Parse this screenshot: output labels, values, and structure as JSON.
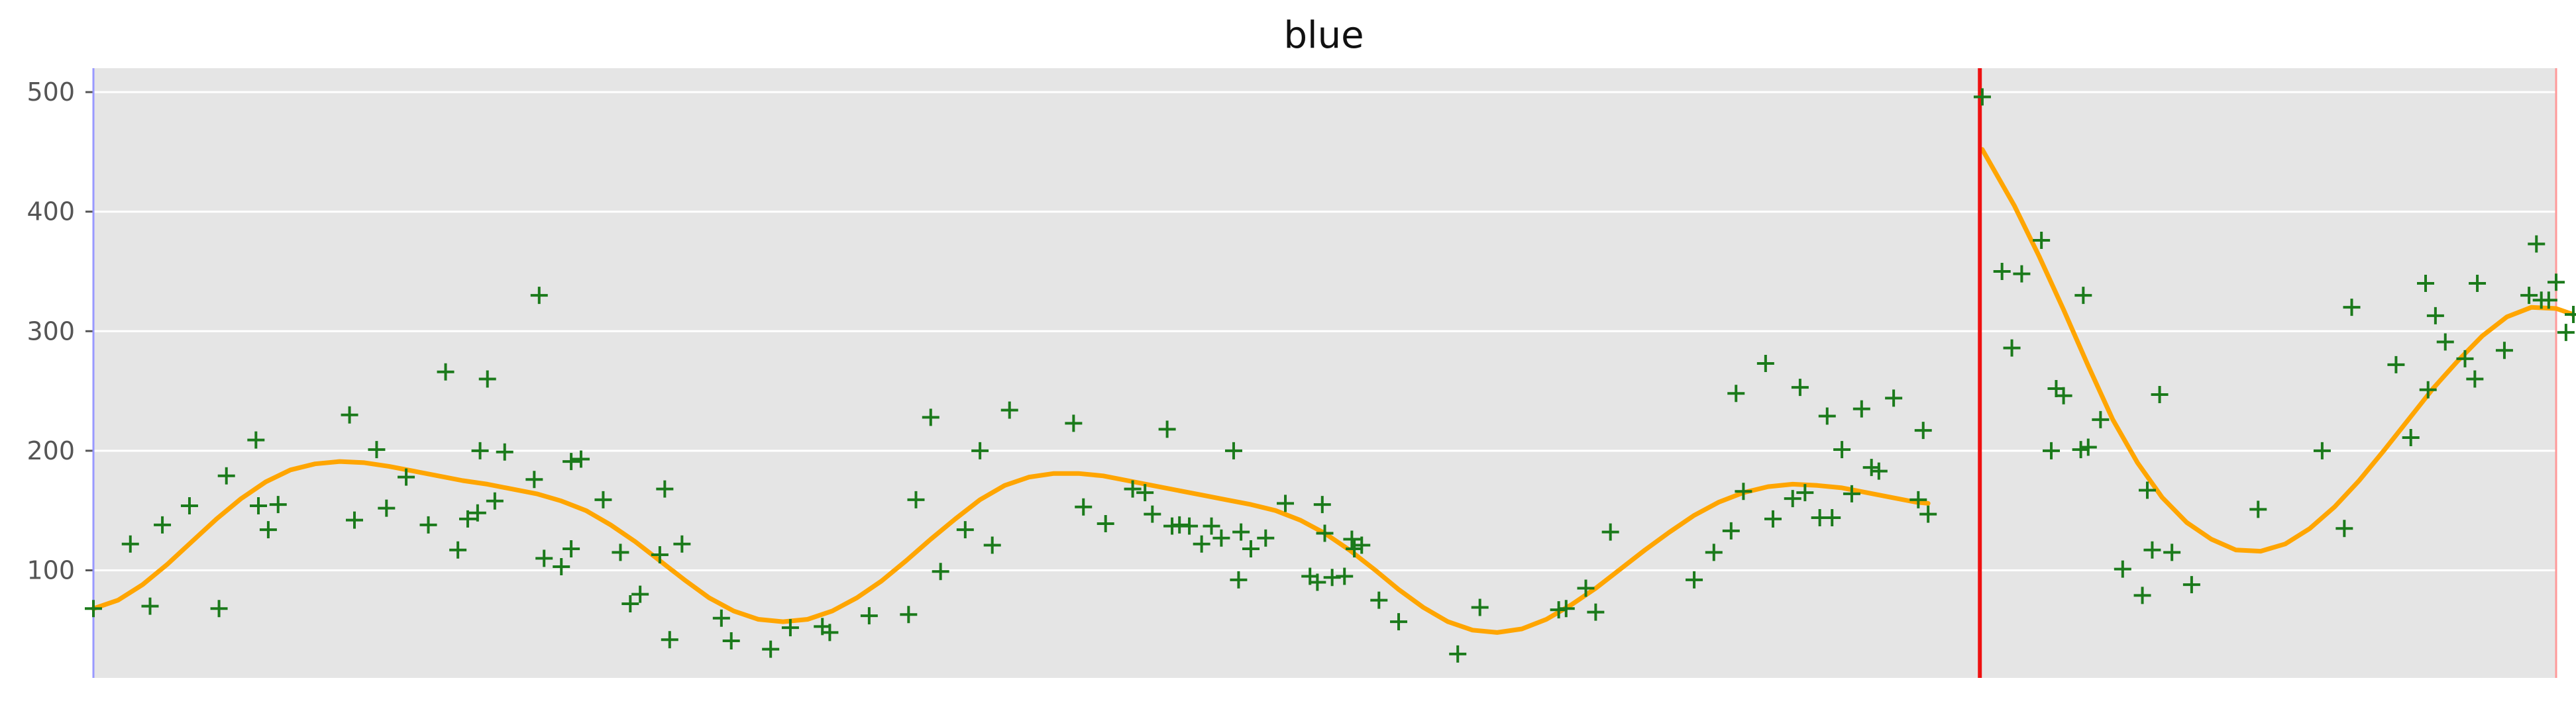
{
  "chart_data": {
    "type": "scatter",
    "title": "blue",
    "xlabel": "",
    "ylabel": "",
    "xlim": [
      0,
      1000
    ],
    "ylim": [
      10,
      520
    ],
    "yticks": [
      100,
      200,
      300,
      400,
      500
    ],
    "grid": true,
    "background": "#e5e5e5",
    "grid_color": "#ffffff",
    "point_marker": "+",
    "colors": {
      "points": "#1b7a1b",
      "fit_line": "#ffa500",
      "split_line": "#ee1111",
      "left_edge": "#9999ff",
      "right_edge": "#ff9999"
    },
    "split_x": 766,
    "points": [
      [
        0,
        68
      ],
      [
        15,
        122
      ],
      [
        23,
        70
      ],
      [
        28,
        138
      ],
      [
        39,
        154
      ],
      [
        51,
        68
      ],
      [
        54,
        179
      ],
      [
        66,
        209
      ],
      [
        67,
        154
      ],
      [
        71,
        134
      ],
      [
        75,
        155
      ],
      [
        104,
        230
      ],
      [
        106,
        142
      ],
      [
        115,
        201
      ],
      [
        119,
        152
      ],
      [
        127,
        178
      ],
      [
        136,
        138
      ],
      [
        143,
        266
      ],
      [
        148,
        117
      ],
      [
        152,
        143
      ],
      [
        156,
        148
      ],
      [
        157,
        200
      ],
      [
        160,
        260
      ],
      [
        163,
        158
      ],
      [
        167,
        199
      ],
      [
        179,
        176
      ],
      [
        181,
        330
      ],
      [
        183,
        110
      ],
      [
        190,
        103
      ],
      [
        194,
        191
      ],
      [
        194,
        118
      ],
      [
        198,
        193
      ],
      [
        207,
        159
      ],
      [
        214,
        115
      ],
      [
        218,
        72
      ],
      [
        222,
        80
      ],
      [
        230,
        113
      ],
      [
        232,
        168
      ],
      [
        234,
        42
      ],
      [
        239,
        122
      ],
      [
        255,
        60
      ],
      [
        259,
        41
      ],
      [
        275,
        34
      ],
      [
        283,
        52
      ],
      [
        296,
        53
      ],
      [
        299,
        48
      ],
      [
        315,
        62
      ],
      [
        331,
        63
      ],
      [
        334,
        159
      ],
      [
        340,
        228
      ],
      [
        344,
        99
      ],
      [
        354,
        134
      ],
      [
        360,
        200
      ],
      [
        365,
        121
      ],
      [
        372,
        234
      ],
      [
        398,
        223
      ],
      [
        402,
        153
      ],
      [
        411,
        139
      ],
      [
        422,
        168
      ],
      [
        427,
        165
      ],
      [
        430,
        147
      ],
      [
        436,
        218
      ],
      [
        438,
        137
      ],
      [
        441,
        138
      ],
      [
        445,
        137
      ],
      [
        450,
        122
      ],
      [
        454,
        137
      ],
      [
        458,
        127
      ],
      [
        463,
        200
      ],
      [
        465,
        92
      ],
      [
        466,
        132
      ],
      [
        470,
        118
      ],
      [
        476,
        127
      ],
      [
        484,
        156
      ],
      [
        494,
        95
      ],
      [
        497,
        90
      ],
      [
        499,
        155
      ],
      [
        500,
        131
      ],
      [
        503,
        94
      ],
      [
        508,
        95
      ],
      [
        511,
        126
      ],
      [
        512,
        118
      ],
      [
        515,
        121
      ],
      [
        522,
        75
      ],
      [
        530,
        57
      ],
      [
        554,
        30
      ],
      [
        563,
        69
      ],
      [
        595,
        67
      ],
      [
        598,
        68
      ],
      [
        606,
        85
      ],
      [
        610,
        65
      ],
      [
        616,
        132
      ],
      [
        650,
        92
      ],
      [
        658,
        115
      ],
      [
        665,
        133
      ],
      [
        667,
        248
      ],
      [
        670,
        166
      ],
      [
        679,
        273
      ],
      [
        682,
        143
      ],
      [
        690,
        160
      ],
      [
        693,
        253
      ],
      [
        695,
        165
      ],
      [
        701,
        144
      ],
      [
        704,
        229
      ],
      [
        706,
        144
      ],
      [
        710,
        201
      ],
      [
        714,
        164
      ],
      [
        718,
        235
      ],
      [
        722,
        186
      ],
      [
        725,
        183
      ],
      [
        731,
        244
      ],
      [
        741,
        159
      ],
      [
        743,
        217
      ],
      [
        745,
        147
      ],
      [
        767,
        496
      ],
      [
        775,
        350
      ],
      [
        779,
        286
      ],
      [
        783,
        348
      ],
      [
        791,
        376
      ],
      [
        795,
        200
      ],
      [
        797,
        252
      ],
      [
        800,
        246
      ],
      [
        807,
        201
      ],
      [
        808,
        330
      ],
      [
        810,
        203
      ],
      [
        815,
        226
      ],
      [
        824,
        101
      ],
      [
        832,
        79
      ],
      [
        834,
        167
      ],
      [
        836,
        117
      ],
      [
        839,
        247
      ],
      [
        844,
        115
      ],
      [
        852,
        88
      ],
      [
        879,
        151
      ],
      [
        905,
        200
      ],
      [
        914,
        135
      ],
      [
        917,
        320
      ],
      [
        935,
        272
      ],
      [
        941,
        211
      ],
      [
        947,
        340
      ],
      [
        948,
        251
      ],
      [
        951,
        313
      ],
      [
        955,
        291
      ],
      [
        963,
        277
      ],
      [
        967,
        260
      ],
      [
        968,
        340
      ],
      [
        979,
        284
      ],
      [
        989,
        330
      ],
      [
        992,
        373
      ],
      [
        994,
        326
      ],
      [
        997,
        326
      ],
      [
        1000,
        341
      ],
      [
        1004,
        299
      ],
      [
        1007,
        314
      ]
    ],
    "fit_segments": [
      [
        [
          0,
          68
        ],
        [
          10,
          75
        ],
        [
          20,
          88
        ],
        [
          30,
          105
        ],
        [
          40,
          124
        ],
        [
          50,
          143
        ],
        [
          60,
          160
        ],
        [
          70,
          174
        ],
        [
          80,
          184
        ],
        [
          90,
          189
        ],
        [
          100,
          191
        ],
        [
          110,
          190
        ],
        [
          120,
          187
        ],
        [
          130,
          183
        ],
        [
          140,
          179
        ],
        [
          150,
          175
        ],
        [
          160,
          172
        ],
        [
          170,
          168
        ],
        [
          180,
          164
        ],
        [
          190,
          158
        ],
        [
          200,
          150
        ],
        [
          210,
          138
        ],
        [
          220,
          124
        ],
        [
          230,
          108
        ],
        [
          240,
          92
        ],
        [
          250,
          77
        ],
        [
          260,
          66
        ],
        [
          270,
          59
        ],
        [
          280,
          57
        ],
        [
          290,
          59
        ],
        [
          300,
          66
        ],
        [
          310,
          77
        ],
        [
          320,
          91
        ],
        [
          330,
          108
        ],
        [
          340,
          126
        ],
        [
          350,
          143
        ],
        [
          360,
          159
        ],
        [
          370,
          171
        ],
        [
          380,
          178
        ],
        [
          390,
          181
        ],
        [
          400,
          181
        ],
        [
          410,
          179
        ],
        [
          420,
          175
        ],
        [
          430,
          171
        ],
        [
          440,
          167
        ],
        [
          450,
          163
        ],
        [
          460,
          159
        ],
        [
          470,
          155
        ],
        [
          480,
          150
        ],
        [
          490,
          142
        ],
        [
          500,
          131
        ],
        [
          510,
          117
        ],
        [
          520,
          101
        ],
        [
          530,
          84
        ],
        [
          540,
          69
        ],
        [
          550,
          57
        ],
        [
          560,
          50
        ],
        [
          570,
          48
        ],
        [
          580,
          51
        ],
        [
          590,
          59
        ],
        [
          600,
          71
        ],
        [
          610,
          85
        ],
        [
          620,
          101
        ],
        [
          630,
          117
        ],
        [
          640,
          132
        ],
        [
          650,
          146
        ],
        [
          660,
          157
        ],
        [
          670,
          165
        ],
        [
          680,
          170
        ],
        [
          690,
          172
        ],
        [
          700,
          171
        ],
        [
          710,
          169
        ],
        [
          720,
          165
        ],
        [
          730,
          161
        ],
        [
          740,
          157
        ],
        [
          745,
          156
        ]
      ],
      [
        [
          767,
          452
        ],
        [
          780,
          405
        ],
        [
          790,
          363
        ],
        [
          800,
          318
        ],
        [
          810,
          271
        ],
        [
          820,
          226
        ],
        [
          830,
          190
        ],
        [
          840,
          161
        ],
        [
          850,
          140
        ],
        [
          860,
          126
        ],
        [
          870,
          117
        ],
        [
          880,
          116
        ],
        [
          890,
          122
        ],
        [
          900,
          135
        ],
        [
          910,
          153
        ],
        [
          920,
          175
        ],
        [
          930,
          200
        ],
        [
          940,
          226
        ],
        [
          950,
          252
        ],
        [
          960,
          275
        ],
        [
          970,
          296
        ],
        [
          980,
          312
        ],
        [
          990,
          320
        ],
        [
          1000,
          319
        ],
        [
          1007,
          314
        ]
      ]
    ]
  }
}
